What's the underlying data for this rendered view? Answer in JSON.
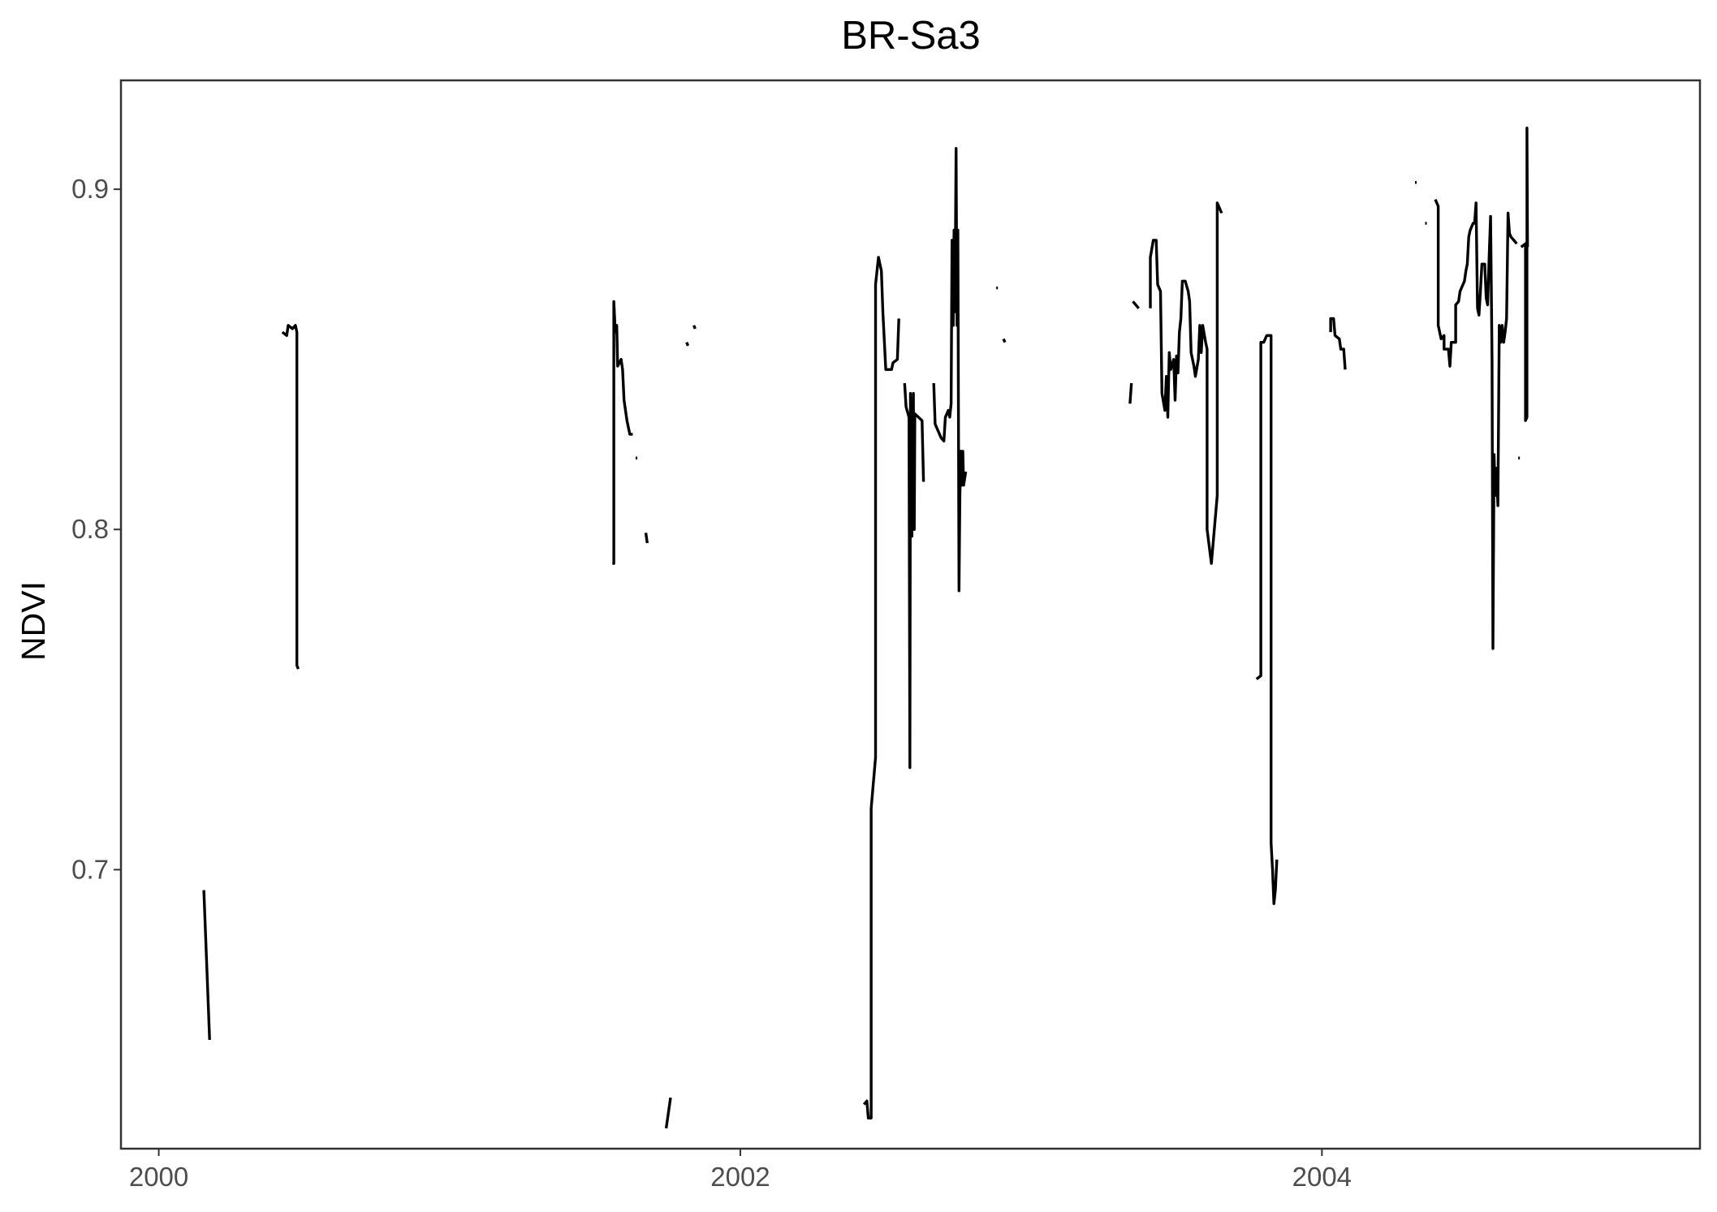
{
  "chart_data": {
    "type": "line",
    "title": "BR-Sa3",
    "xlabel": "",
    "ylabel": "NDVI",
    "xlim": [
      1999.87,
      2005.3
    ],
    "ylim": [
      0.618,
      0.932
    ],
    "x_ticks": [
      2000,
      2002,
      2004
    ],
    "x_tick_labels": [
      "2000",
      "2002",
      "2004"
    ],
    "y_ticks": [
      0.7,
      0.8,
      0.9
    ],
    "y_tick_labels": [
      "0.7",
      "0.8",
      "0.9"
    ],
    "grid": false,
    "legend": "none",
    "line_color": "#000000",
    "series": [
      {
        "segments": [
          [
            [
              2000.155,
              0.694
            ],
            [
              2000.175,
              0.65
            ]
          ],
          [
            [
              2000.425,
              0.858
            ],
            [
              2000.44,
              0.857
            ],
            [
              2000.445,
              0.86
            ],
            [
              2000.46,
              0.859
            ],
            [
              2000.47,
              0.86
            ],
            [
              2000.475,
              0.858
            ],
            [
              2000.475,
              0.76
            ],
            [
              2000.48,
              0.759
            ]
          ],
          [
            [
              2001.56,
              0.79
            ],
            [
              2001.565,
              0.79
            ],
            [
              2001.565,
              0.867
            ],
            [
              2001.57,
              0.858
            ],
            [
              2001.575,
              0.86
            ],
            [
              2001.578,
              0.848
            ],
            [
              2001.59,
              0.85
            ],
            [
              2001.595,
              0.847
            ],
            [
              2001.6,
              0.838
            ],
            [
              2001.61,
              0.832
            ],
            [
              2001.62,
              0.828
            ],
            [
              2001.63,
              0.828
            ]
          ],
          [
            [
              2001.64,
              0.821
            ]
          ],
          [
            [
              2001.675,
              0.799
            ],
            [
              2001.68,
              0.796
            ]
          ],
          [
            [
              2001.745,
              0.624
            ],
            [
              2001.76,
              0.633
            ]
          ],
          [
            [
              2001.815,
              0.855
            ],
            [
              2001.82,
              0.854
            ]
          ],
          [
            [
              2001.84,
              0.86
            ],
            [
              2001.845,
              0.859
            ]
          ],
          [
            [
              2002.425,
              0.631
            ],
            [
              2002.435,
              0.632
            ],
            [
              2002.44,
              0.627
            ],
            [
              2002.45,
              0.627
            ],
            [
              2002.45,
              0.718
            ],
            [
              2002.465,
              0.733
            ],
            [
              2002.465,
              0.872
            ],
            [
              2002.475,
              0.88
            ],
            [
              2002.485,
              0.876
            ],
            [
              2002.49,
              0.864
            ],
            [
              2002.5,
              0.847
            ],
            [
              2002.52,
              0.847
            ],
            [
              2002.525,
              0.849
            ],
            [
              2002.54,
              0.85
            ],
            [
              2002.545,
              0.862
            ]
          ],
          [
            [
              2002.565,
              0.843
            ],
            [
              2002.57,
              0.836
            ],
            [
              2002.58,
              0.833
            ],
            [
              2002.583,
              0.73
            ],
            [
              2002.585,
              0.84
            ],
            [
              2002.59,
              0.798
            ],
            [
              2002.595,
              0.84
            ],
            [
              2002.598,
              0.8
            ],
            [
              2002.6,
              0.834
            ],
            [
              2002.625,
              0.832
            ],
            [
              2002.63,
              0.814
            ]
          ],
          [
            [
              2002.665,
              0.843
            ],
            [
              2002.67,
              0.831
            ],
            [
              2002.68,
              0.829
            ],
            [
              2002.69,
              0.827
            ],
            [
              2002.7,
              0.826
            ],
            [
              2002.705,
              0.833
            ],
            [
              2002.715,
              0.835
            ],
            [
              2002.72,
              0.833
            ],
            [
              2002.725,
              0.837
            ],
            [
              2002.728,
              0.885
            ],
            [
              2002.732,
              0.86
            ],
            [
              2002.735,
              0.888
            ],
            [
              2002.738,
              0.864
            ],
            [
              2002.742,
              0.912
            ],
            [
              2002.745,
              0.86
            ],
            [
              2002.748,
              0.888
            ],
            [
              2002.752,
              0.782
            ],
            [
              2002.755,
              0.81
            ],
            [
              2002.758,
              0.823
            ],
            [
              2002.762,
              0.813
            ],
            [
              2002.765,
              0.823
            ],
            [
              2002.768,
              0.813
            ],
            [
              2002.775,
              0.817
            ]
          ],
          [
            [
              2002.88,
              0.871
            ]
          ],
          [
            [
              2002.905,
              0.856
            ],
            [
              2002.91,
              0.855
            ]
          ],
          [
            [
              2003.34,
              0.837
            ],
            [
              2003.345,
              0.843
            ]
          ],
          [
            [
              2003.35,
              0.867
            ],
            [
              2003.37,
              0.865
            ]
          ],
          [
            [
              2003.41,
              0.865
            ],
            [
              2003.41,
              0.88
            ],
            [
              2003.42,
              0.885
            ],
            [
              2003.43,
              0.885
            ],
            [
              2003.435,
              0.872
            ],
            [
              2003.445,
              0.87
            ],
            [
              2003.45,
              0.84
            ],
            [
              2003.46,
              0.835
            ],
            [
              2003.465,
              0.845
            ],
            [
              2003.47,
              0.833
            ],
            [
              2003.475,
              0.852
            ],
            [
              2003.48,
              0.847
            ],
            [
              2003.49,
              0.85
            ],
            [
              2003.495,
              0.838
            ],
            [
              2003.5,
              0.851
            ],
            [
              2003.505,
              0.846
            ],
            [
              2003.51,
              0.858
            ],
            [
              2003.515,
              0.862
            ],
            [
              2003.52,
              0.873
            ],
            [
              2003.53,
              0.873
            ],
            [
              2003.54,
              0.87
            ],
            [
              2003.545,
              0.867
            ],
            [
              2003.55,
              0.852
            ],
            [
              2003.56,
              0.848
            ],
            [
              2003.565,
              0.845
            ],
            [
              2003.575,
              0.85
            ],
            [
              2003.58,
              0.86
            ],
            [
              2003.585,
              0.852
            ],
            [
              2003.59,
              0.86
            ],
            [
              2003.6,
              0.855
            ],
            [
              2003.605,
              0.853
            ],
            [
              2003.605,
              0.8
            ],
            [
              2003.62,
              0.79
            ],
            [
              2003.64,
              0.81
            ],
            [
              2003.64,
              0.896
            ],
            [
              2003.65,
              0.894
            ],
            [
              2003.655,
              0.893
            ]
          ],
          [
            [
              2003.775,
              0.756
            ],
            [
              2003.79,
              0.757
            ],
            [
              2003.79,
              0.855
            ],
            [
              2003.8,
              0.855
            ],
            [
              2003.81,
              0.857
            ],
            [
              2003.825,
              0.857
            ],
            [
              2003.825,
              0.708
            ],
            [
              2003.83,
              0.7
            ],
            [
              2003.835,
              0.69
            ],
            [
              2003.84,
              0.694
            ],
            [
              2003.845,
              0.703
            ]
          ],
          [
            [
              2004.03,
              0.858
            ],
            [
              2004.03,
              0.862
            ],
            [
              2004.04,
              0.862
            ],
            [
              2004.045,
              0.857
            ],
            [
              2004.06,
              0.856
            ],
            [
              2004.065,
              0.853
            ],
            [
              2004.075,
              0.853
            ],
            [
              2004.08,
              0.847
            ]
          ],
          [
            [
              2004.32,
              0.902
            ]
          ],
          [
            [
              2004.355,
              0.89
            ]
          ],
          [
            [
              2004.39,
              0.897
            ],
            [
              2004.395,
              0.896
            ],
            [
              2004.4,
              0.895
            ],
            [
              2004.4,
              0.86
            ],
            [
              2004.41,
              0.856
            ],
            [
              2004.42,
              0.857
            ],
            [
              2004.42,
              0.853
            ],
            [
              2004.435,
              0.853
            ],
            [
              2004.44,
              0.848
            ],
            [
              2004.445,
              0.855
            ],
            [
              2004.46,
              0.855
            ],
            [
              2004.46,
              0.866
            ],
            [
              2004.47,
              0.867
            ],
            [
              2004.475,
              0.87
            ],
            [
              2004.49,
              0.873
            ],
            [
              2004.495,
              0.876
            ],
            [
              2004.5,
              0.878
            ],
            [
              2004.505,
              0.886
            ],
            [
              2004.51,
              0.888
            ],
            [
              2004.52,
              0.89
            ],
            [
              2004.525,
              0.89
            ],
            [
              2004.53,
              0.896
            ],
            [
              2004.535,
              0.865
            ],
            [
              2004.54,
              0.863
            ],
            [
              2004.545,
              0.87
            ],
            [
              2004.55,
              0.878
            ],
            [
              2004.56,
              0.878
            ],
            [
              2004.565,
              0.868
            ],
            [
              2004.57,
              0.866
            ],
            [
              2004.575,
              0.88
            ],
            [
              2004.58,
              0.892
            ],
            [
              2004.585,
              0.85
            ],
            [
              2004.588,
              0.765
            ],
            [
              2004.592,
              0.822
            ],
            [
              2004.596,
              0.81
            ],
            [
              2004.6,
              0.818
            ],
            [
              2004.605,
              0.807
            ],
            [
              2004.61,
              0.86
            ],
            [
              2004.615,
              0.855
            ],
            [
              2004.62,
              0.86
            ],
            [
              2004.625,
              0.855
            ],
            [
              2004.63,
              0.858
            ],
            [
              2004.635,
              0.862
            ],
            [
              2004.64,
              0.893
            ],
            [
              2004.645,
              0.887
            ],
            [
              2004.65,
              0.886
            ],
            [
              2004.66,
              0.885
            ],
            [
              2004.67,
              0.884
            ]
          ],
          [
            [
              2004.675,
              0.821
            ]
          ],
          [
            [
              2004.685,
              0.883
            ],
            [
              2004.7,
              0.884
            ],
            [
              2004.7,
              0.832
            ],
            [
              2004.705,
              0.833
            ],
            [
              2004.705,
              0.918
            ],
            [
              2004.707,
              0.883
            ]
          ]
        ]
      }
    ]
  }
}
